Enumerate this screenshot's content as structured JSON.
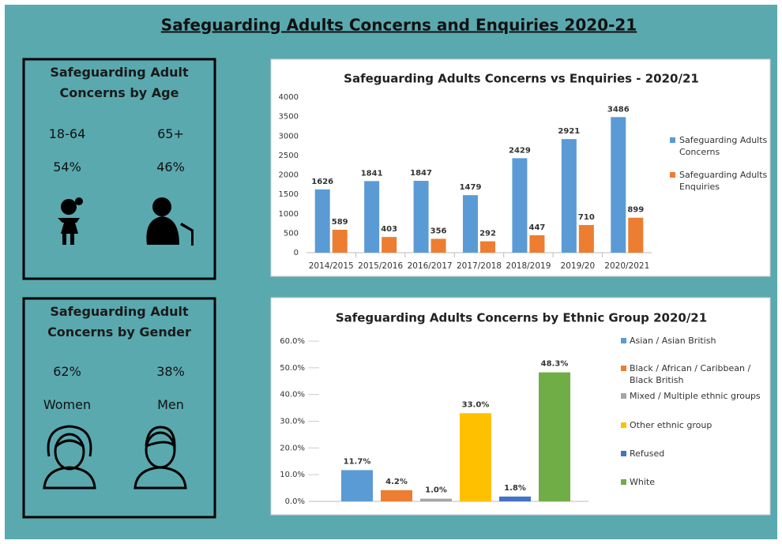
{
  "header": {
    "title": "Safeguarding Adults Concerns and Enquiries 2020-21"
  },
  "age_panel": {
    "title": "Safeguarding Adult Concerns by Age",
    "groups": [
      {
        "label": "18-64",
        "share": "54%"
      },
      {
        "label": "65+",
        "share": "46%"
      }
    ]
  },
  "gender_panel": {
    "title": "Safeguarding Adult Concerns by Gender",
    "groups": [
      {
        "share": "62%",
        "label": "Women"
      },
      {
        "share": "38%",
        "label": "Men"
      }
    ]
  },
  "chart_data": [
    {
      "type": "bar",
      "title": "Safeguarding Adults Concerns vs Enquiries - 2020/21",
      "categories": [
        "2014/2015",
        "2015/2016",
        "2016/2017",
        "2017/2018",
        "2018/2019",
        "2019/20",
        "2020/2021"
      ],
      "series": [
        {
          "name": "Safeguarding Adults Concerns",
          "color": "#5b9bd5",
          "values": [
            1626,
            1841,
            1847,
            1479,
            2429,
            2921,
            3486
          ]
        },
        {
          "name": "Safeguarding Adults Enquiries",
          "color": "#ed7d31",
          "values": [
            589,
            403,
            356,
            292,
            447,
            710,
            899
          ]
        }
      ],
      "ylim": [
        0,
        4000
      ],
      "yticks": [
        0,
        500,
        1000,
        1500,
        2000,
        2500,
        3000,
        3500,
        4000
      ],
      "grid": false,
      "legend": "right"
    },
    {
      "type": "bar",
      "title": "Safeguarding Adults Concerns by Ethnic Group 2020/21",
      "categories": [
        "Asian / Asian British",
        "Black / African / Caribbean / Black British",
        "Mixed / Multiple ethnic groups",
        "Other ethnic group",
        "Refused",
        "White"
      ],
      "colors": [
        "#5b9bd5",
        "#ed7d31",
        "#a5a5a5",
        "#ffc000",
        "#4472c4",
        "#70ad47"
      ],
      "values": [
        11.7,
        4.2,
        1.0,
        33.0,
        1.8,
        48.3
      ],
      "value_labels": [
        "11.7%",
        "4.2%",
        "1.0%",
        "33.0%",
        "1.8%",
        "48.3%"
      ],
      "ylim": [
        0,
        60
      ],
      "yticks": [
        {
          "value": 0,
          "label": "0.0%"
        },
        {
          "value": 10,
          "label": "10.0%"
        },
        {
          "value": 20,
          "label": "20.0%"
        },
        {
          "value": 30,
          "label": "30.0%"
        },
        {
          "value": 40,
          "label": "40.0%"
        },
        {
          "value": 50,
          "label": "50.0%"
        },
        {
          "value": 60,
          "label": "60.0%"
        }
      ],
      "grid": false,
      "legend": "right"
    }
  ]
}
